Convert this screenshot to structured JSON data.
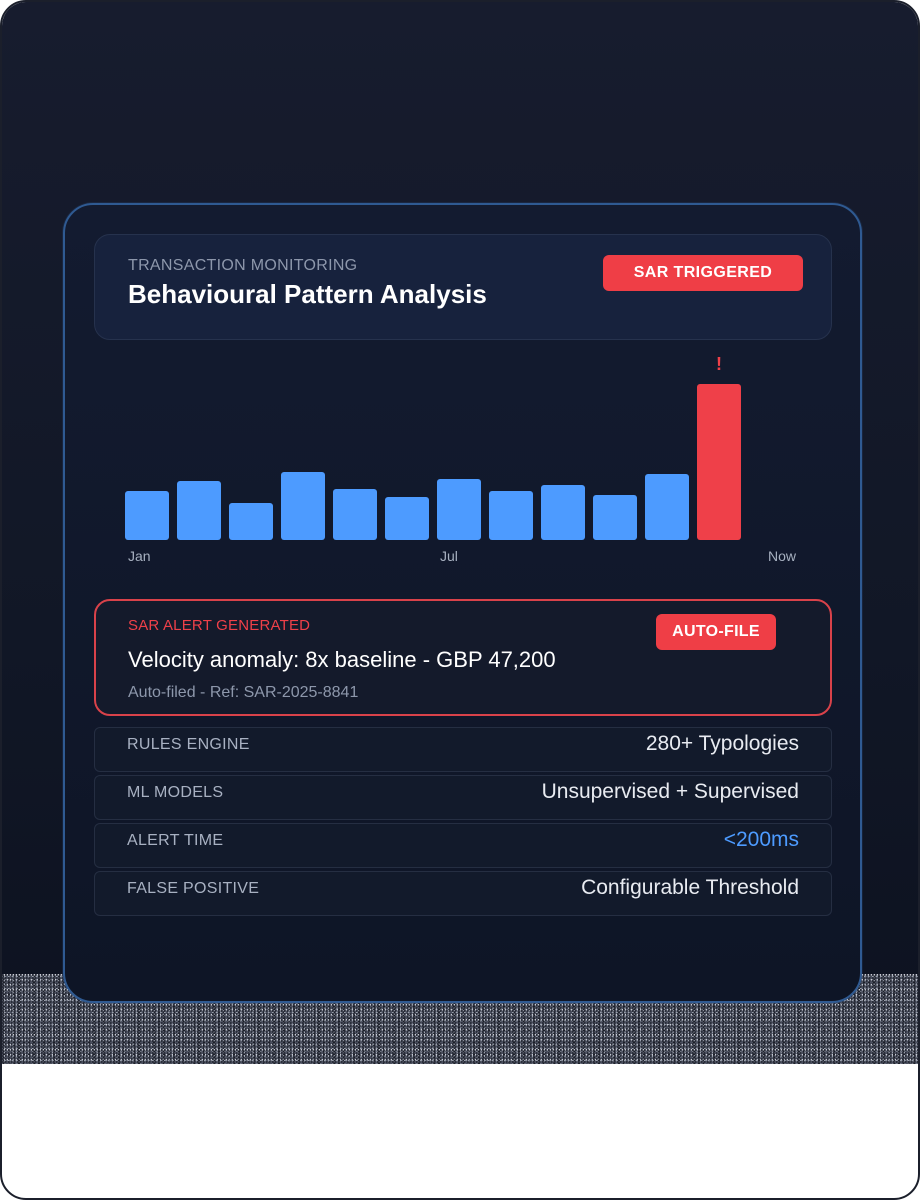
{
  "header": {
    "eyebrow": "TRANSACTION MONITORING",
    "title": "Behavioural Pattern Analysis",
    "badge": "SAR TRIGGERED"
  },
  "chart_data": {
    "type": "bar",
    "title": "",
    "alert_marker": "!",
    "x_labels": [
      "Jan",
      "Jul",
      "Now"
    ],
    "values": [
      50,
      60,
      38,
      70,
      52,
      44,
      62,
      50,
      56,
      46,
      68,
      160
    ],
    "highlight_index": 11,
    "ylim": [
      0,
      180
    ],
    "colors": {
      "normal": "#4d9bff",
      "alert": "#ef4049"
    }
  },
  "alert": {
    "eyebrow": "SAR ALERT GENERATED",
    "title": "Velocity anomaly: 8x baseline - GBP 47,200",
    "subtitle": "Auto-filed - Ref: SAR-2025-8841",
    "badge": "AUTO-FILE"
  },
  "stats": [
    {
      "label": "RULES ENGINE",
      "value": "280+ Typologies"
    },
    {
      "label": "ML MODELS",
      "value": "Unsupervised + Supervised"
    },
    {
      "label": "ALERT TIME",
      "value": "<200ms"
    },
    {
      "label": "FALSE POSITIVE",
      "value": "Configurable Threshold"
    }
  ]
}
